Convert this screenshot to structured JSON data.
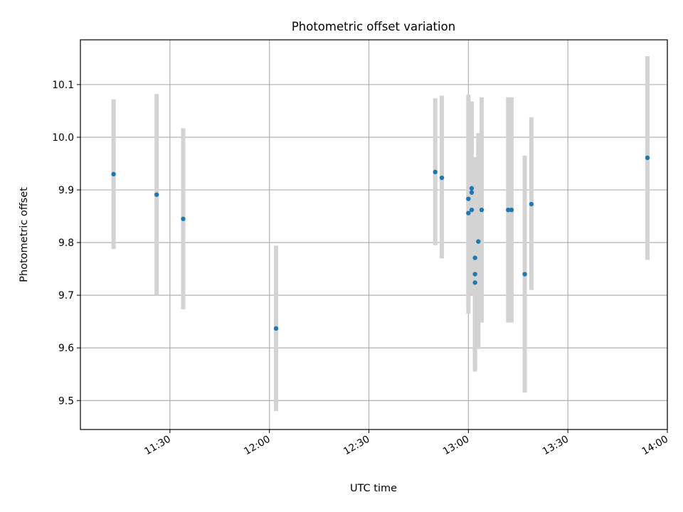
{
  "chart_data": {
    "type": "scatter",
    "title": "Photometric offset variation",
    "xlabel": "UTC time",
    "ylabel": "Photometric offset",
    "x_is_time": true,
    "xlim": [
      "11:03",
      "14:00"
    ],
    "ylim": [
      9.445,
      10.185
    ],
    "xticks": [
      "11:30",
      "12:00",
      "12:30",
      "13:00",
      "13:30",
      "14:00"
    ],
    "yticks": [
      "9.5",
      "9.6",
      "9.7",
      "9.8",
      "9.9",
      "10.0",
      "10.1"
    ],
    "grid": true,
    "colors": {
      "marker": "#1f77b4",
      "errorbar": "#d3d3d3"
    },
    "series": [
      {
        "points": [
          {
            "x": "11:13",
            "y": 9.93,
            "lo": 9.788,
            "hi": 10.072
          },
          {
            "x": "11:26",
            "y": 9.891,
            "lo": 9.7,
            "hi": 10.082
          },
          {
            "x": "11:34",
            "y": 9.845,
            "lo": 9.673,
            "hi": 10.017
          },
          {
            "x": "12:02",
            "y": 9.637,
            "lo": 9.48,
            "hi": 9.794
          },
          {
            "x": "12:50",
            "y": 9.934,
            "lo": 9.795,
            "hi": 10.074
          },
          {
            "x": "12:52",
            "y": 9.923,
            "lo": 9.77,
            "hi": 10.079
          },
          {
            "x": "13:00",
            "y": 9.883,
            "lo": 9.685,
            "hi": 10.081
          },
          {
            "x": "13:00",
            "y": 9.856,
            "lo": 9.665,
            "hi": 10.07
          },
          {
            "x": "13:01",
            "y": 9.895,
            "lo": 9.722,
            "hi": 10.068
          },
          {
            "x": "13:01",
            "y": 9.903,
            "lo": 9.75,
            "hi": 10.056
          },
          {
            "x": "13:01",
            "y": 9.862,
            "lo": 9.7,
            "hi": 10.024
          },
          {
            "x": "13:02",
            "y": 9.74,
            "lo": 9.56,
            "hi": 9.92
          },
          {
            "x": "13:02",
            "y": 9.724,
            "lo": 9.555,
            "hi": 9.893
          },
          {
            "x": "13:02",
            "y": 9.771,
            "lo": 9.58,
            "hi": 9.962
          },
          {
            "x": "13:03",
            "y": 9.802,
            "lo": 9.598,
            "hi": 10.008
          },
          {
            "x": "13:04",
            "y": 9.862,
            "lo": 9.648,
            "hi": 10.076
          },
          {
            "x": "13:12",
            "y": 9.862,
            "lo": 9.648,
            "hi": 10.076
          },
          {
            "x": "13:13",
            "y": 9.862,
            "lo": 9.648,
            "hi": 10.076
          },
          {
            "x": "13:17",
            "y": 9.74,
            "lo": 9.515,
            "hi": 9.965
          },
          {
            "x": "13:19",
            "y": 9.873,
            "lo": 9.71,
            "hi": 10.038
          },
          {
            "x": "13:54",
            "y": 9.961,
            "lo": 9.767,
            "hi": 10.154
          }
        ]
      }
    ]
  }
}
